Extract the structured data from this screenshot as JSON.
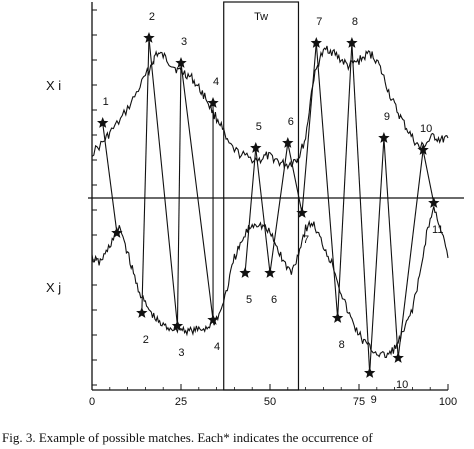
{
  "caption": "Fig. 3. Example of possible matches. Each* indicates the occurrence of",
  "chart_data": {
    "type": "line",
    "xlim": [
      0,
      100
    ],
    "x_ticks": [
      "0",
      "25",
      "50",
      "75",
      "100"
    ],
    "x_tick_values": [
      0,
      25,
      50,
      75,
      100
    ],
    "window_label": "Tw",
    "window": [
      37,
      58
    ],
    "series": [
      {
        "name": "X i",
        "x": [
          0,
          3,
          5,
          8,
          11,
          14,
          17,
          18,
          20,
          22,
          24,
          26,
          28,
          30,
          32,
          34,
          36,
          38,
          41,
          44,
          47,
          49,
          51,
          53,
          55,
          57,
          58,
          60,
          62,
          64,
          66,
          68,
          70,
          72,
          74,
          76,
          78,
          80,
          82,
          84,
          86,
          88,
          90,
          92,
          94,
          96,
          98,
          100
        ],
        "y": [
          0.45,
          0.55,
          0.65,
          0.78,
          0.95,
          1.15,
          1.35,
          1.45,
          1.42,
          1.35,
          1.28,
          1.25,
          1.2,
          1.1,
          1.0,
          0.85,
          0.75,
          0.55,
          0.45,
          0.4,
          0.38,
          0.42,
          0.4,
          0.35,
          0.33,
          0.38,
          0.4,
          0.6,
          1.15,
          1.4,
          1.5,
          1.45,
          1.38,
          1.32,
          1.35,
          1.4,
          1.45,
          1.38,
          1.2,
          1.0,
          0.85,
          0.72,
          0.6,
          0.5,
          0.55,
          0.62,
          0.58,
          0.6
        ]
      },
      {
        "name": "X j",
        "x": [
          0,
          2,
          4,
          6,
          8,
          10,
          12,
          14,
          16,
          18,
          20,
          22,
          24,
          26,
          28,
          30,
          32,
          34,
          36,
          38,
          40,
          42,
          44,
          46,
          48,
          50,
          52,
          54,
          56,
          58,
          60,
          62,
          64,
          66,
          68,
          70,
          72,
          74,
          76,
          78,
          80,
          82,
          84,
          86,
          88,
          90,
          92,
          94,
          96,
          98,
          100
        ],
        "y": [
          -0.6,
          -0.65,
          -0.55,
          -0.4,
          -0.3,
          -0.55,
          -0.8,
          -1.0,
          -1.12,
          -1.22,
          -1.28,
          -1.3,
          -1.3,
          -1.32,
          -1.33,
          -1.32,
          -1.3,
          -1.25,
          -1.15,
          -0.9,
          -0.6,
          -0.45,
          -0.3,
          -0.25,
          -0.28,
          -0.35,
          -0.5,
          -0.65,
          -0.75,
          -0.55,
          -0.3,
          -0.25,
          -0.4,
          -0.55,
          -0.7,
          -0.95,
          -1.15,
          -1.3,
          -1.42,
          -1.5,
          -1.55,
          -1.58,
          -1.55,
          -1.45,
          -1.3,
          -1.1,
          -0.8,
          -0.35,
          -0.1,
          -0.3,
          -0.6
        ]
      }
    ],
    "match_lines": [
      {
        "x1": 3,
        "y1": 0.75,
        "x2": 7,
        "y2": -0.35,
        "label_top": "1",
        "label_bottom": ""
      },
      {
        "x1": 16,
        "y1": 1.6,
        "x2": 14,
        "y2": -1.15,
        "label_top": "2",
        "label_bottom": "2"
      },
      {
        "x1": 16,
        "y1": 1.6,
        "x2": 24,
        "y2": -1.28,
        "label_top": "",
        "label_bottom": ""
      },
      {
        "x1": 25,
        "y1": 1.35,
        "x2": 24,
        "y2": -1.28,
        "label_top": "3",
        "label_bottom": "3"
      },
      {
        "x1": 25,
        "y1": 1.35,
        "x2": 34,
        "y2": -1.22,
        "label_top": "",
        "label_bottom": ""
      },
      {
        "x1": 34,
        "y1": 0.95,
        "x2": 34,
        "y2": -1.22,
        "label_top": "4",
        "label_bottom": "4"
      },
      {
        "x1": 46,
        "y1": 0.5,
        "x2": 43,
        "y2": -0.75,
        "label_top": "5",
        "label_bottom": "5"
      },
      {
        "x1": 46,
        "y1": 0.5,
        "x2": 50,
        "y2": -0.75,
        "label_top": "",
        "label_bottom": "6"
      },
      {
        "x1": 55,
        "y1": 0.55,
        "x2": 50,
        "y2": -0.75,
        "label_top": "6",
        "label_bottom": ""
      },
      {
        "x1": 55,
        "y1": 0.55,
        "x2": 59,
        "y2": -0.15,
        "label_top": "",
        "label_bottom": "7"
      },
      {
        "x1": 63,
        "y1": 1.55,
        "x2": 59,
        "y2": -0.15,
        "label_top": "7",
        "label_bottom": ""
      },
      {
        "x1": 63,
        "y1": 1.55,
        "x2": 69,
        "y2": -1.2,
        "label_top": "",
        "label_bottom": "8"
      },
      {
        "x1": 73,
        "y1": 1.55,
        "x2": 69,
        "y2": -1.2,
        "label_top": "8",
        "label_bottom": ""
      },
      {
        "x1": 73,
        "y1": 1.55,
        "x2": 78,
        "y2": -1.75,
        "label_top": "",
        "label_bottom": "9"
      },
      {
        "x1": 82,
        "y1": 0.6,
        "x2": 78,
        "y2": -1.75,
        "label_top": "9",
        "label_bottom": ""
      },
      {
        "x1": 82,
        "y1": 0.6,
        "x2": 86,
        "y2": -1.6,
        "label_top": "",
        "label_bottom": "10"
      },
      {
        "x1": 93,
        "y1": 0.48,
        "x2": 86,
        "y2": -1.6,
        "label_top": "10",
        "label_bottom": ""
      },
      {
        "x1": 93,
        "y1": 0.48,
        "x2": 96,
        "y2": -0.05,
        "label_top": "",
        "label_bottom": "11"
      }
    ]
  }
}
